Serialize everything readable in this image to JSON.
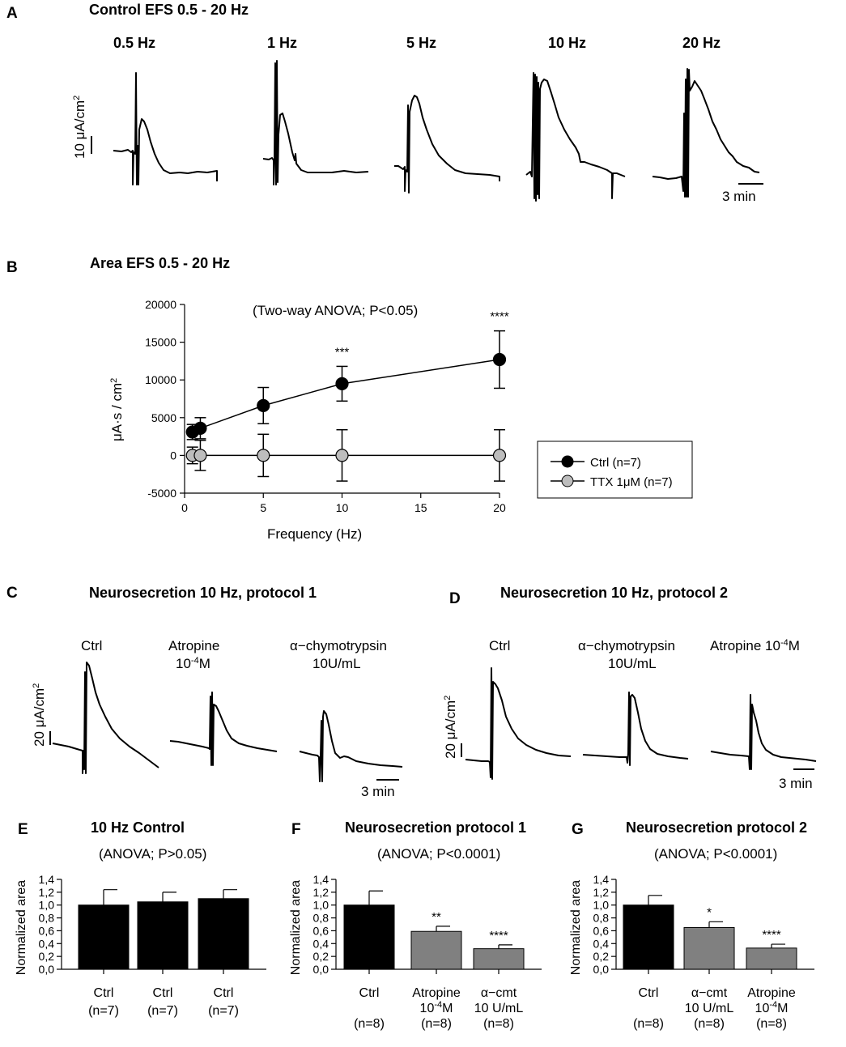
{
  "panels": {
    "A": {
      "letter": "A",
      "title": "Control EFS 0.5 - 20 Hz",
      "trace_labels": [
        "0.5 Hz",
        "1 Hz",
        "5 Hz",
        "10 Hz",
        "20 Hz"
      ],
      "scale_y": "10 μA/cm",
      "scale_y_sup": "2",
      "scale_x": "3 min"
    },
    "B": {
      "letter": "B",
      "title": "Area EFS 0.5 - 20 Hz"
    },
    "C": {
      "letter": "C",
      "title": "Neurosecretion 10 Hz, protocol 1",
      "labels": {
        "ctrl": "Ctrl",
        "atropine_l1": "Atropine",
        "atropine_l2a": "10",
        "atropine_l2sup": "-4",
        "atropine_l2b": "M",
        "chymo_l1": "α−chymotrypsin",
        "chymo_l2": "10U/mL"
      },
      "scale_y": "20 μA/cm",
      "scale_y_sup": "2",
      "scale_x": "3 min"
    },
    "D": {
      "letter": "D",
      "title": "Neurosecretion 10 Hz, protocol 2",
      "labels": {
        "ctrl": "Ctrl",
        "chymo_l1": "α−chymotrypsin",
        "chymo_l2": "10U/mL",
        "atropine_a": "Atropine 10",
        "atropine_sup": "-4",
        "atropine_b": "M"
      },
      "scale_y": "20 μA/cm",
      "scale_y_sup": "2",
      "scale_x": "3 min"
    },
    "E": {
      "letter": "E"
    },
    "F": {
      "letter": "F"
    },
    "G": {
      "letter": "G"
    }
  },
  "chart_data": [
    {
      "id": "B",
      "type": "line",
      "title": "Area EFS 0.5 - 20 Hz",
      "annotation": "(Two-way ANOVA; P<0.05)",
      "xlabel": "Frequency (Hz)",
      "ylabel_a": "μA·s / cm",
      "ylabel_sup": "2",
      "xlim": [
        0,
        20
      ],
      "ylim": [
        -5000,
        20000
      ],
      "xticks": [
        0,
        5,
        10,
        15,
        20
      ],
      "yticks": [
        -5000,
        0,
        5000,
        10000,
        15000,
        20000
      ],
      "x": [
        0.5,
        1,
        5,
        10,
        20
      ],
      "series": [
        {
          "name": "Ctrl (n=7)",
          "color": "#000000",
          "values": [
            3100,
            3600,
            6600,
            9500,
            12700
          ],
          "errors": [
            1000,
            1400,
            2400,
            2300,
            3800
          ]
        },
        {
          "name": "TTX 1μM (n=7)",
          "color": "#bdbdbd",
          "values": [
            0,
            0,
            0,
            0,
            0
          ],
          "errors": [
            1100,
            2000,
            2800,
            3400,
            3400
          ]
        }
      ],
      "significance": [
        {
          "x": 10,
          "label": "***"
        },
        {
          "x": 20,
          "label": "****"
        }
      ]
    },
    {
      "id": "E",
      "type": "bar",
      "title": "10 Hz Control",
      "annotation": "(ANOVA; P>0.05)",
      "ylabel": "Normalized area",
      "ylim": [
        0,
        1.4
      ],
      "yticks": [
        "0,0",
        "0,2",
        "0,4",
        "0,6",
        "0,8",
        "1,0",
        "1,2",
        "1,4"
      ],
      "categories": [
        {
          "l1": "Ctrl",
          "l2": "(n=7)"
        },
        {
          "l1": "Ctrl",
          "l2": "(n=7)"
        },
        {
          "l1": "Ctrl",
          "l2": "(n=7)"
        }
      ],
      "values": [
        1.0,
        1.05,
        1.1
      ],
      "errors": [
        0.24,
        0.15,
        0.14
      ],
      "colors": [
        "#000000",
        "#000000",
        "#000000"
      ],
      "stars": [
        "",
        "",
        ""
      ]
    },
    {
      "id": "F",
      "type": "bar",
      "title": "Neurosecretion protocol 1",
      "annotation": "(ANOVA; P<0.0001)",
      "ylabel": "Normalized area",
      "ylim": [
        0,
        1.4
      ],
      "yticks": [
        "0,0",
        "0,2",
        "0,4",
        "0,6",
        "0,8",
        "1,0",
        "1,2",
        "1,4"
      ],
      "categories": [
        {
          "l1": "Ctrl",
          "l2": "",
          "l3": "(n=8)"
        },
        {
          "l1": "Atropine",
          "l2": "10",
          "l2sup": "-4",
          "l2b": "M",
          "l3": "(n=8)"
        },
        {
          "l1": "α−cmt",
          "l2": "10 U/mL",
          "l3": "(n=8)"
        }
      ],
      "values": [
        1.0,
        0.59,
        0.32
      ],
      "errors": [
        0.22,
        0.08,
        0.06
      ],
      "colors": [
        "#000000",
        "#808080",
        "#808080"
      ],
      "stars": [
        "",
        "**",
        "****"
      ]
    },
    {
      "id": "G",
      "type": "bar",
      "title": "Neurosecretion protocol 2",
      "annotation": "(ANOVA; P<0.0001)",
      "ylabel": "Normalized area",
      "ylim": [
        0,
        1.4
      ],
      "yticks": [
        "0,0",
        "0,2",
        "0,4",
        "0,6",
        "0,8",
        "1,0",
        "1,2",
        "1,4"
      ],
      "categories": [
        {
          "l1": "Ctrl",
          "l2": "",
          "l3": "(n=8)"
        },
        {
          "l1": "α−cmt",
          "l2": "10 U/mL",
          "l3": "(n=8)"
        },
        {
          "l1": "Atropine",
          "l2": "10",
          "l2sup": "-4",
          "l2b": "M",
          "l3": "(n=8)"
        }
      ],
      "values": [
        1.0,
        0.65,
        0.33
      ],
      "errors": [
        0.15,
        0.09,
        0.06
      ],
      "colors": [
        "#000000",
        "#808080",
        "#808080"
      ],
      "stars": [
        "",
        "*",
        "****"
      ]
    }
  ]
}
